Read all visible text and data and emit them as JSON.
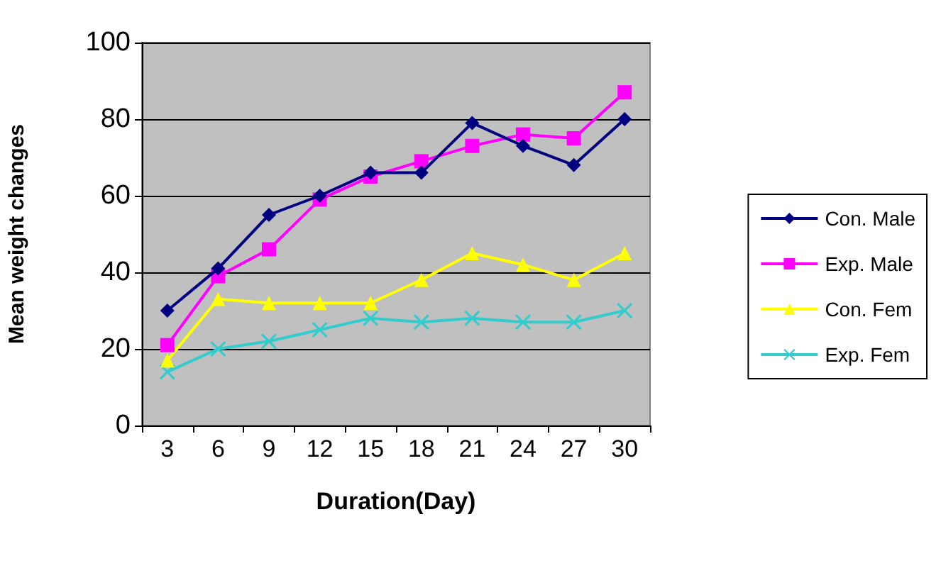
{
  "chart_data": {
    "type": "line",
    "xlabel": "Duration(Day)",
    "ylabel": "Mean weight changes",
    "categories": [
      "3",
      "6",
      "9",
      "12",
      "15",
      "18",
      "21",
      "24",
      "27",
      "30"
    ],
    "series": [
      {
        "name": "Con. Male",
        "color": "#000080",
        "marker": "diamond",
        "values": [
          30,
          41,
          55,
          60,
          66,
          66,
          79,
          73,
          68,
          80
        ]
      },
      {
        "name": "Exp. Male",
        "color": "#ff00ff",
        "marker": "square",
        "values": [
          21,
          39,
          46,
          59,
          65,
          69,
          73,
          76,
          75,
          87
        ]
      },
      {
        "name": "Con. Fem",
        "color": "#ffff00",
        "marker": "triangle",
        "values": [
          17,
          33,
          32,
          32,
          32,
          38,
          45,
          42,
          38,
          45
        ]
      },
      {
        "name": "Exp. Fem",
        "color": "#33cccc",
        "marker": "cross",
        "values": [
          14,
          20,
          22,
          25,
          28,
          27,
          28,
          27,
          27,
          30
        ]
      }
    ],
    "ylim": [
      0,
      100
    ],
    "yticks": [
      0,
      20,
      40,
      60,
      80,
      100
    ],
    "grid": "y",
    "legend": "right"
  }
}
